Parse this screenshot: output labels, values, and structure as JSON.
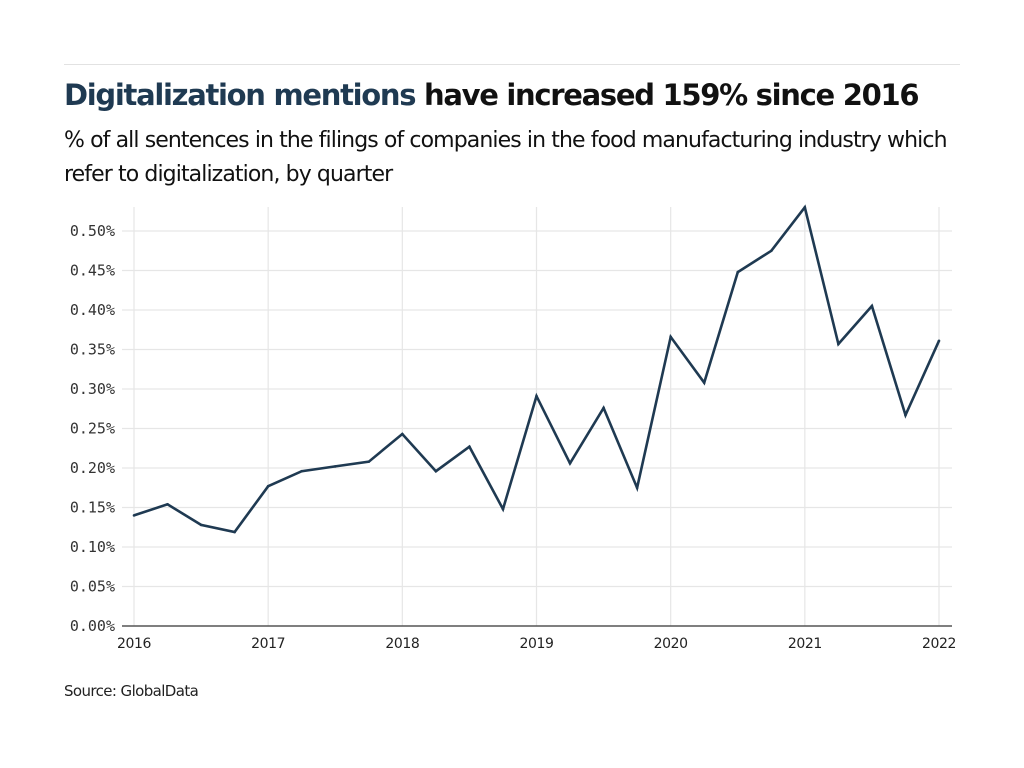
{
  "header": {
    "title_highlight": "Digitalization mentions",
    "title_rest": " have increased 159% since 2016",
    "subtitle": "% of all sentences in the filings of companies in the food manufacturing industry which refer to digitalization, by quarter"
  },
  "footer": {
    "source": "Source: GlobalData"
  },
  "colors": {
    "line": "#1f3a52",
    "title_highlight": "#1f3a52",
    "grid": "#e6e6e6",
    "axis": "#555555"
  },
  "chart_data": {
    "type": "line",
    "title": "Digitalization mentions have increased 159% since 2016",
    "subtitle": "% of all sentences in the filings of companies in the food manufacturing industry which refer to digitalization, by quarter",
    "xlabel": "",
    "ylabel": "",
    "x": [
      2016.0,
      2016.25,
      2016.5,
      2016.75,
      2017.0,
      2017.25,
      2017.5,
      2017.75,
      2018.0,
      2018.25,
      2018.5,
      2018.75,
      2019.0,
      2019.25,
      2019.5,
      2019.75,
      2020.0,
      2020.25,
      2020.5,
      2020.75,
      2021.0,
      2021.25,
      2021.5,
      2021.75,
      2022.0
    ],
    "series": [
      {
        "name": "Digitalization mentions (%)",
        "values": [
          0.14,
          0.154,
          0.128,
          0.119,
          0.177,
          0.196,
          0.202,
          0.208,
          0.243,
          0.196,
          0.227,
          0.148,
          0.291,
          0.206,
          0.276,
          0.175,
          0.366,
          0.308,
          0.448,
          0.475,
          0.53,
          0.357,
          0.405,
          0.267,
          0.361
        ]
      }
    ],
    "xlim": [
      2016,
      2022
    ],
    "ylim": [
      0,
      0.5
    ],
    "x_ticks": [
      "2016",
      "2017",
      "2018",
      "2019",
      "2020",
      "2021",
      "2022"
    ],
    "y_ticks": [
      "0.00%",
      "0.05%",
      "0.10%",
      "0.15%",
      "0.20%",
      "0.25%",
      "0.30%",
      "0.35%",
      "0.40%",
      "0.45%",
      "0.50%"
    ],
    "grid": true,
    "legend": "none",
    "source": "Source: GlobalData"
  }
}
